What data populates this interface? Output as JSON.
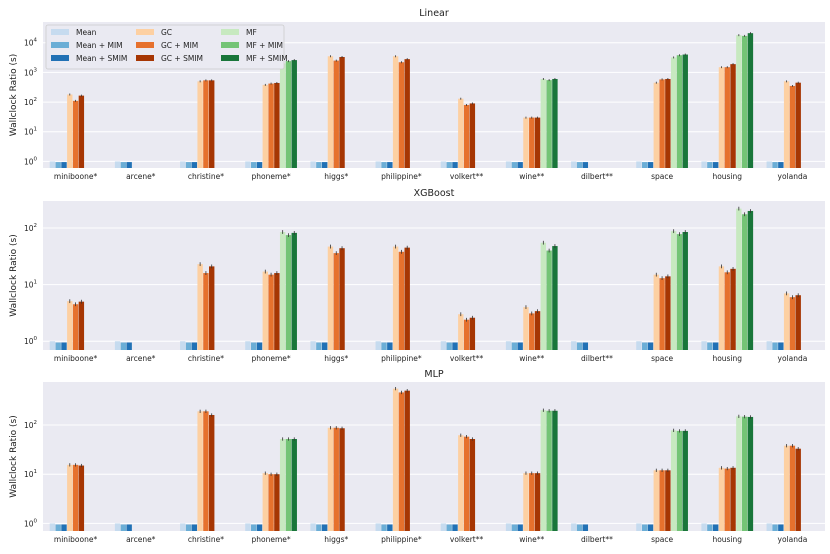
{
  "figure": {
    "ylabel": "Wallclock Ratio (s)",
    "legend": {
      "columns": [
        [
          "Mean",
          "Mean + MIM",
          "Mean + SMIM"
        ],
        [
          "GC",
          "GC + MIM",
          "GC + SMIM"
        ],
        [
          "MF",
          "MF + MIM",
          "MF + SMIM"
        ]
      ],
      "placement": "top-left of first panel"
    },
    "colors": {
      "Mean": "#c6dbef",
      "Mean + MIM": "#6baed6",
      "Mean + SMIM": "#2171b5",
      "GC": "#fdd0a2",
      "GC + MIM": "#e6712d",
      "GC + SMIM": "#a63603",
      "MF": "#c7e9c0",
      "MF + MIM": "#74c476",
      "MF + SMIM": "#19763a",
      "background": "#eaeaf2",
      "grid": "#ffffff"
    }
  },
  "chart_data": [
    {
      "type": "bar",
      "title": "Linear",
      "xlabel": "",
      "ylabel": "Wallclock Ratio (s)",
      "yscale": "log",
      "ylim": [
        0.6,
        50000
      ],
      "yticks": [
        {
          "base": "10",
          "exp": "0"
        },
        {
          "base": "10",
          "exp": "1"
        },
        {
          "base": "10",
          "exp": "2"
        },
        {
          "base": "10",
          "exp": "3"
        },
        {
          "base": "10",
          "exp": "4"
        }
      ],
      "categories": [
        "miniboone*",
        "arcene*",
        "christine*",
        "phoneme*",
        "higgs*",
        "philippine*",
        "volkert**",
        "wine**",
        "dilbert**",
        "space",
        "housing",
        "yolanda"
      ],
      "series": [
        {
          "name": "Mean",
          "values": [
            1,
            1,
            1,
            1,
            1,
            1,
            1,
            1,
            1,
            1,
            1,
            1
          ]
        },
        {
          "name": "Mean + MIM",
          "values": [
            0.95,
            0.95,
            0.95,
            0.95,
            0.95,
            0.95,
            0.95,
            0.95,
            0.95,
            0.95,
            0.95,
            0.95
          ]
        },
        {
          "name": "Mean + SMIM",
          "values": [
            0.95,
            0.95,
            0.95,
            0.95,
            0.95,
            0.95,
            0.95,
            0.95,
            0.95,
            0.95,
            0.95,
            0.95
          ]
        },
        {
          "name": "GC",
          "values": [
            180,
            null,
            500,
            380,
            3500,
            3500,
            130,
            30,
            null,
            450,
            1500,
            500
          ]
        },
        {
          "name": "GC + MIM",
          "values": [
            110,
            null,
            540,
            420,
            2500,
            2200,
            80,
            30,
            null,
            580,
            1500,
            350
          ]
        },
        {
          "name": "GC + SMIM",
          "values": [
            165,
            null,
            540,
            440,
            3300,
            2800,
            90,
            30,
            null,
            600,
            1900,
            450
          ]
        },
        {
          "name": "MF",
          "values": [
            null,
            null,
            null,
            2000,
            null,
            null,
            null,
            600,
            null,
            3200,
            18000,
            null
          ]
        },
        {
          "name": "MF + MIM",
          "values": [
            null,
            null,
            null,
            2400,
            null,
            null,
            null,
            550,
            null,
            3800,
            17000,
            null
          ]
        },
        {
          "name": "MF + SMIM",
          "values": [
            null,
            null,
            null,
            2600,
            null,
            null,
            null,
            600,
            null,
            4000,
            21000,
            null
          ]
        }
      ]
    },
    {
      "type": "bar",
      "title": "XGBoost",
      "xlabel": "",
      "ylabel": "Wallclock Ratio (s)",
      "yscale": "log",
      "ylim": [
        0.7,
        300
      ],
      "yticks": [
        {
          "base": "10",
          "exp": "0"
        },
        {
          "base": "10",
          "exp": "1"
        },
        {
          "base": "10",
          "exp": "2"
        }
      ],
      "categories": [
        "miniboone*",
        "arcene*",
        "christine*",
        "phoneme*",
        "higgs*",
        "philippine*",
        "volkert**",
        "wine**",
        "dilbert**",
        "space",
        "housing",
        "yolanda"
      ],
      "series": [
        {
          "name": "Mean",
          "values": [
            1,
            1,
            1,
            1,
            1,
            1,
            1,
            1,
            1,
            1,
            1,
            1
          ]
        },
        {
          "name": "Mean + MIM",
          "values": [
            0.95,
            0.95,
            0.95,
            0.95,
            0.95,
            0.95,
            0.95,
            0.95,
            0.95,
            0.95,
            0.95,
            0.95
          ]
        },
        {
          "name": "Mean + SMIM",
          "values": [
            0.95,
            0.95,
            0.95,
            0.95,
            0.95,
            0.95,
            0.95,
            0.95,
            0.95,
            0.95,
            0.95,
            0.95
          ]
        },
        {
          "name": "GC",
          "values": [
            5.1,
            null,
            23,
            17,
            47,
            47,
            3,
            4,
            null,
            15,
            21,
            7
          ]
        },
        {
          "name": "GC + MIM",
          "values": [
            4.5,
            null,
            16,
            15,
            36,
            38,
            2.4,
            3.1,
            null,
            13,
            16.5,
            6
          ]
        },
        {
          "name": "GC + SMIM",
          "values": [
            5,
            null,
            21,
            16,
            44,
            45,
            2.6,
            3.4,
            null,
            14,
            19,
            6.5
          ]
        },
        {
          "name": "MF",
          "values": [
            null,
            null,
            null,
            85,
            null,
            null,
            null,
            55,
            null,
            88,
            220,
            null
          ]
        },
        {
          "name": "MF + MIM",
          "values": [
            null,
            null,
            null,
            75,
            null,
            null,
            null,
            40,
            null,
            78,
            175,
            null
          ]
        },
        {
          "name": "MF + SMIM",
          "values": [
            null,
            null,
            null,
            82,
            null,
            null,
            null,
            48,
            null,
            85,
            200,
            null
          ]
        }
      ]
    },
    {
      "type": "bar",
      "title": "MLP",
      "xlabel": "",
      "ylabel": "Wallclock Ratio (s)",
      "yscale": "log",
      "ylim": [
        0.7,
        750
      ],
      "yticks": [
        {
          "base": "10",
          "exp": "0"
        },
        {
          "base": "10",
          "exp": "1"
        },
        {
          "base": "10",
          "exp": "2"
        }
      ],
      "categories": [
        "miniboone*",
        "arcene*",
        "christine*",
        "phoneme*",
        "higgs*",
        "philippine*",
        "volkert**",
        "wine**",
        "dilbert**",
        "space",
        "housing",
        "yolanda"
      ],
      "series": [
        {
          "name": "Mean",
          "values": [
            1,
            1,
            1,
            1,
            1,
            1,
            1,
            1,
            1,
            1,
            1,
            1
          ]
        },
        {
          "name": "Mean + MIM",
          "values": [
            0.95,
            0.95,
            0.95,
            0.95,
            0.95,
            0.95,
            0.95,
            0.95,
            0.95,
            0.95,
            0.95,
            0.95
          ]
        },
        {
          "name": "Mean + SMIM",
          "values": [
            0.95,
            0.95,
            0.95,
            0.95,
            0.95,
            0.95,
            0.95,
            0.95,
            0.95,
            0.95,
            0.95,
            0.95
          ]
        },
        {
          "name": "GC",
          "values": [
            15.5,
            null,
            190,
            10.5,
            88,
            550,
            62,
            10.5,
            null,
            12,
            13.5,
            38
          ]
        },
        {
          "name": "GC + MIM",
          "values": [
            15.5,
            null,
            190,
            10,
            88,
            460,
            58,
            10.5,
            null,
            12,
            13,
            38
          ]
        },
        {
          "name": "GC + SMIM",
          "values": [
            15,
            null,
            160,
            10,
            86,
            500,
            52,
            10.5,
            null,
            12,
            13.5,
            33
          ]
        },
        {
          "name": "MF",
          "values": [
            null,
            null,
            null,
            52,
            null,
            null,
            null,
            200,
            null,
            78,
            150,
            null
          ]
        },
        {
          "name": "MF + MIM",
          "values": [
            null,
            null,
            null,
            52,
            null,
            null,
            null,
            195,
            null,
            76,
            148,
            null
          ]
        },
        {
          "name": "MF + SMIM",
          "values": [
            null,
            null,
            null,
            52,
            null,
            null,
            null,
            195,
            null,
            76,
            146,
            null
          ]
        }
      ]
    }
  ]
}
